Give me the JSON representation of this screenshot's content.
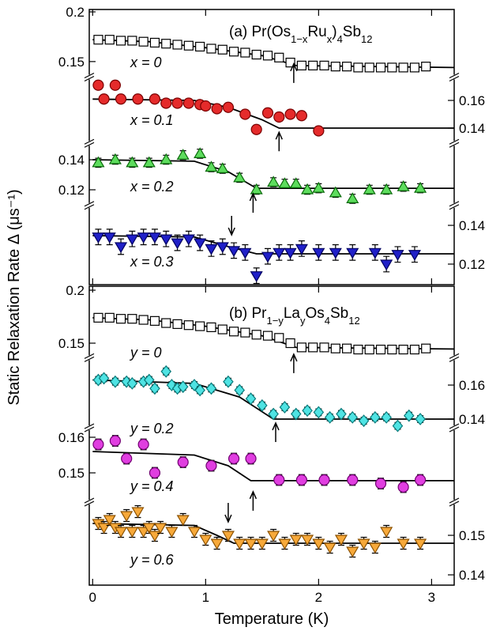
{
  "chart_data": [
    {
      "type": "scatter",
      "title_parts": [
        {
          "text": "(a)  Pr(Os"
        },
        {
          "text": "1−x",
          "sub": true
        },
        {
          "text": "Ru"
        },
        {
          "text": "x",
          "sub": true
        },
        {
          "text": ")"
        },
        {
          "text": "4",
          "sub": true
        },
        {
          "text": "Sb"
        },
        {
          "text": "12",
          "sub": true
        }
      ],
      "y_label": "Static Relaxation Rate Δ (μs⁻¹)",
      "xlim": [
        -0.03,
        3.2
      ],
      "xticks": [
        0,
        1,
        2,
        3
      ],
      "series": [
        {
          "name": "x = 0",
          "marker": "square",
          "filled": false,
          "color": "#ffffff",
          "edgecolor": "#000000",
          "axis": "left",
          "ylim": [
            0.13,
            0.2
          ],
          "yticks": [
            0.15,
            0.2
          ],
          "x": [
            0.05,
            0.15,
            0.25,
            0.35,
            0.45,
            0.55,
            0.65,
            0.75,
            0.85,
            0.95,
            1.05,
            1.15,
            1.25,
            1.35,
            1.45,
            1.55,
            1.65,
            1.75,
            1.85,
            1.95,
            2.05,
            2.15,
            2.25,
            2.35,
            2.45,
            2.55,
            2.65,
            2.75,
            2.85,
            2.95
          ],
          "values": [
            0.172,
            0.172,
            0.171,
            0.171,
            0.17,
            0.169,
            0.168,
            0.167,
            0.166,
            0.165,
            0.163,
            0.162,
            0.16,
            0.159,
            0.157,
            0.156,
            0.154,
            0.149,
            0.146,
            0.146,
            0.146,
            0.145,
            0.145,
            0.144,
            0.144,
            0.144,
            0.144,
            0.144,
            0.144,
            0.145
          ],
          "fit_x": [
            0,
            0.5,
            1.0,
            1.5,
            1.8,
            3.2
          ],
          "fit_y": [
            0.172,
            0.17,
            0.164,
            0.156,
            0.146,
            0.144
          ],
          "arrows": [
            {
              "x": 1.78,
              "y": 0.1476,
              "dir": "up"
            }
          ]
        },
        {
          "name": "x = 0.1",
          "marker": "circle",
          "filled": true,
          "color": "#e52b2b",
          "edgecolor": "#7a0000",
          "axis": "right",
          "ylim": [
            0.13,
            0.18
          ],
          "yticks": [
            0.14,
            0.16
          ],
          "x": [
            0.05,
            0.1,
            0.2,
            0.25,
            0.4,
            0.55,
            0.65,
            0.75,
            0.85,
            0.95,
            1.0,
            1.1,
            1.2,
            1.35,
            1.45,
            1.55,
            1.65,
            1.75,
            1.85,
            2.0
          ],
          "values": [
            0.171,
            0.161,
            0.171,
            0.161,
            0.161,
            0.161,
            0.158,
            0.158,
            0.158,
            0.157,
            0.156,
            0.154,
            0.155,
            0.15,
            0.139,
            0.151,
            0.148,
            0.15,
            0.149,
            0.138
          ],
          "errors": [
            0.003,
            0.003,
            0.003,
            0.003,
            0.003,
            0.003,
            0.003,
            0.003,
            0.003,
            0.003,
            0.003,
            0.003,
            0.003,
            0.003,
            0.003,
            0.003,
            0.003,
            0.003,
            0.003,
            0.003
          ],
          "fit_x": [
            0,
            0.9,
            1.2,
            1.5,
            1.65,
            3.2
          ],
          "fit_y": [
            0.161,
            0.16,
            0.155,
            0.146,
            0.14,
            0.14
          ],
          "arrows": [
            {
              "x": 1.65,
              "y": 0.137,
              "dir": "up"
            }
          ]
        },
        {
          "name": "x = 0.2",
          "marker": "triangle-up",
          "filled": true,
          "color": "#5ddc5d",
          "edgecolor": "#0a6a0a",
          "axis": "left",
          "ylim": [
            0.11,
            0.15
          ],
          "yticks": [
            0.12,
            0.14
          ],
          "x": [
            0.05,
            0.2,
            0.35,
            0.5,
            0.65,
            0.8,
            0.95,
            1.05,
            1.15,
            1.3,
            1.45,
            1.6,
            1.7,
            1.8,
            1.9,
            2.0,
            2.15,
            2.3,
            2.45,
            2.6,
            2.75,
            2.9
          ],
          "values": [
            0.138,
            0.14,
            0.138,
            0.138,
            0.14,
            0.143,
            0.144,
            0.135,
            0.134,
            0.128,
            0.12,
            0.125,
            0.124,
            0.124,
            0.12,
            0.121,
            0.118,
            0.114,
            0.12,
            0.12,
            0.122,
            0.121
          ],
          "errors": [
            0.003,
            0.003,
            0.003,
            0.003,
            0.003,
            0.003,
            0.003,
            0.003,
            0.003,
            0.003,
            0.003,
            0.003,
            0.003,
            0.003,
            0.003,
            0.003,
            0.003,
            0.003,
            0.003,
            0.003,
            0.003,
            0.003
          ],
          "fit_x": [
            0,
            0.9,
            1.2,
            1.45,
            3.2
          ],
          "fit_y": [
            0.14,
            0.139,
            0.132,
            0.121,
            0.121
          ],
          "arrows": [
            {
              "x": 1.42,
              "y": 0.1174,
              "dir": "up"
            }
          ]
        },
        {
          "name": "x = 0.3",
          "marker": "triangle-down",
          "filled": true,
          "color": "#2020c8",
          "edgecolor": "#000060",
          "axis": "right",
          "ylim": [
            0.11,
            0.15
          ],
          "yticks": [
            0.12,
            0.14
          ],
          "x": [
            0.05,
            0.15,
            0.25,
            0.35,
            0.45,
            0.55,
            0.65,
            0.75,
            0.85,
            0.95,
            1.05,
            1.15,
            1.25,
            1.35,
            1.45,
            1.55,
            1.65,
            1.75,
            1.85,
            2.0,
            2.15,
            2.3,
            2.5,
            2.6,
            2.7,
            2.85
          ],
          "values": [
            0.134,
            0.134,
            0.129,
            0.133,
            0.134,
            0.134,
            0.133,
            0.131,
            0.133,
            0.131,
            0.128,
            0.129,
            0.127,
            0.126,
            0.114,
            0.124,
            0.126,
            0.126,
            0.128,
            0.126,
            0.126,
            0.126,
            0.126,
            0.12,
            0.125,
            0.125
          ],
          "errors": [
            0.004,
            0.004,
            0.004,
            0.004,
            0.004,
            0.004,
            0.004,
            0.004,
            0.004,
            0.004,
            0.004,
            0.004,
            0.004,
            0.004,
            0.004,
            0.004,
            0.004,
            0.004,
            0.004,
            0.004,
            0.004,
            0.004,
            0.004,
            0.004,
            0.004,
            0.004
          ],
          "fit_x": [
            0,
            0.9,
            1.2,
            1.45,
            3.2
          ],
          "fit_y": [
            0.1347,
            0.134,
            0.129,
            0.1253,
            0.1253
          ],
          "arrows": [
            {
              "x": 1.23,
              "y": 0.1351,
              "dir": "down"
            }
          ]
        }
      ]
    },
    {
      "type": "scatter",
      "title_parts": [
        {
          "text": "(b)  Pr"
        },
        {
          "text": "1−y",
          "sub": true
        },
        {
          "text": "La"
        },
        {
          "text": "y",
          "sub": true
        },
        {
          "text": "Os"
        },
        {
          "text": "4",
          "sub": true
        },
        {
          "text": "Sb"
        },
        {
          "text": "12",
          "sub": true
        }
      ],
      "x_label": "Temperature (K)",
      "xlim": [
        -0.03,
        3.2
      ],
      "xticks": [
        0,
        1,
        2,
        3
      ],
      "series": [
        {
          "name": "y = 0",
          "marker": "square",
          "filled": false,
          "color": "#ffffff",
          "edgecolor": "#000000",
          "axis": "left",
          "ylim": [
            0.13,
            0.2
          ],
          "yticks": [
            0.15,
            0.2
          ],
          "x": [
            0.05,
            0.15,
            0.25,
            0.35,
            0.45,
            0.55,
            0.65,
            0.75,
            0.85,
            0.95,
            1.05,
            1.15,
            1.25,
            1.35,
            1.45,
            1.55,
            1.65,
            1.75,
            1.85,
            1.95,
            2.05,
            2.15,
            2.25,
            2.35,
            2.45,
            2.55,
            2.65,
            2.75,
            2.85,
            2.95
          ],
          "values": [
            0.174,
            0.174,
            0.173,
            0.173,
            0.172,
            0.171,
            0.169,
            0.168,
            0.167,
            0.166,
            0.165,
            0.163,
            0.161,
            0.16,
            0.158,
            0.157,
            0.155,
            0.15,
            0.146,
            0.146,
            0.146,
            0.145,
            0.145,
            0.144,
            0.144,
            0.144,
            0.144,
            0.144,
            0.144,
            0.145
          ],
          "fit_x": [
            0,
            0.5,
            1.0,
            1.5,
            1.8,
            3.2
          ],
          "fit_y": [
            0.174,
            0.172,
            0.166,
            0.157,
            0.146,
            0.1445
          ],
          "arrows": [
            {
              "x": 1.78,
              "y": 0.1396,
              "dir": "up"
            }
          ]
        },
        {
          "name": "y = 0.2",
          "marker": "diamond",
          "filled": true,
          "color": "#4fe3e3",
          "edgecolor": "#0a7a7a",
          "axis": "right",
          "ylim": [
            0.13,
            0.18
          ],
          "yticks": [
            0.14,
            0.16
          ],
          "x": [
            0.05,
            0.1,
            0.2,
            0.3,
            0.35,
            0.45,
            0.5,
            0.55,
            0.65,
            0.7,
            0.75,
            0.8,
            0.9,
            0.95,
            1.05,
            1.2,
            1.3,
            1.4,
            1.5,
            1.6,
            1.7,
            1.8,
            1.9,
            2.0,
            2.1,
            2.2,
            2.3,
            2.4,
            2.5,
            2.6,
            2.7,
            2.8,
            2.9
          ],
          "values": [
            0.163,
            0.164,
            0.162,
            0.162,
            0.161,
            0.162,
            0.163,
            0.158,
            0.168,
            0.16,
            0.158,
            0.159,
            0.16,
            0.157,
            0.158,
            0.162,
            0.157,
            0.152,
            0.148,
            0.143,
            0.147,
            0.143,
            0.145,
            0.144,
            0.141,
            0.143,
            0.141,
            0.139,
            0.141,
            0.141,
            0.136,
            0.142,
            0.14
          ],
          "errors": [
            0.002,
            0.002,
            0.002,
            0.002,
            0.002,
            0.002,
            0.002,
            0.002,
            0.002,
            0.002,
            0.002,
            0.002,
            0.002,
            0.002,
            0.002,
            0.002,
            0.002,
            0.002,
            0.002,
            0.002,
            0.002,
            0.002,
            0.002,
            0.002,
            0.002,
            0.002,
            0.002,
            0.002,
            0.002,
            0.002,
            0.002,
            0.002,
            0.002
          ],
          "fit_x": [
            0,
            0.9,
            1.3,
            1.6,
            3.2
          ],
          "fit_y": [
            0.163,
            0.161,
            0.153,
            0.14,
            0.14
          ],
          "arrows": [
            {
              "x": 1.62,
              "y": 0.1377,
              "dir": "up"
            }
          ]
        },
        {
          "name": "y = 0.4",
          "marker": "circle",
          "filled": true,
          "color": "#e03ee0",
          "edgecolor": "#700070",
          "axis": "left",
          "ylim": [
            0.14,
            0.165
          ],
          "yticks": [
            0.15,
            0.16
          ],
          "x": [
            0.05,
            0.2,
            0.3,
            0.45,
            0.55,
            0.8,
            1.05,
            1.25,
            1.4,
            1.65,
            1.85,
            2.05,
            2.3,
            2.55,
            2.75,
            2.9
          ],
          "values": [
            0.158,
            0.159,
            0.154,
            0.158,
            0.15,
            0.153,
            0.152,
            0.154,
            0.154,
            0.148,
            0.148,
            0.148,
            0.148,
            0.147,
            0.146,
            0.148
          ],
          "errors": [
            0.0015,
            0.0015,
            0.0015,
            0.0015,
            0.0015,
            0.0015,
            0.0015,
            0.0015,
            0.0015,
            0.0015,
            0.0015,
            0.0015,
            0.0015,
            0.0015,
            0.0015,
            0.0015
          ],
          "fit_x": [
            0,
            0.9,
            1.2,
            1.4,
            3.2
          ],
          "fit_y": [
            0.156,
            0.155,
            0.152,
            0.1478,
            0.1478
          ],
          "arrows": [
            {
              "x": 1.42,
              "y": 0.1447,
              "dir": "up"
            }
          ]
        },
        {
          "name": "y = 0.6",
          "marker": "triangle-down",
          "filled": true,
          "color": "#f7a93a",
          "edgecolor": "#8a5000",
          "axis": "right",
          "ylim": [
            0.1375,
            0.16
          ],
          "yticks": [
            0.14,
            0.15
          ],
          "x": [
            0.05,
            0.1,
            0.15,
            0.2,
            0.25,
            0.3,
            0.35,
            0.4,
            0.45,
            0.5,
            0.55,
            0.6,
            0.7,
            0.8,
            0.9,
            1.0,
            1.1,
            1.2,
            1.3,
            1.4,
            1.5,
            1.6,
            1.7,
            1.8,
            1.9,
            2.0,
            2.1,
            2.2,
            2.3,
            2.4,
            2.5,
            2.6,
            2.75,
            2.9
          ],
          "values": [
            0.153,
            0.152,
            0.154,
            0.152,
            0.151,
            0.155,
            0.151,
            0.156,
            0.151,
            0.152,
            0.15,
            0.152,
            0.151,
            0.154,
            0.151,
            0.149,
            0.148,
            0.15,
            0.148,
            0.148,
            0.148,
            0.15,
            0.148,
            0.149,
            0.149,
            0.148,
            0.147,
            0.149,
            0.146,
            0.148,
            0.147,
            0.151,
            0.148,
            0.148
          ],
          "errors": [
            0.0015,
            0.0015,
            0.0015,
            0.0015,
            0.0015,
            0.0015,
            0.0015,
            0.0015,
            0.0015,
            0.0015,
            0.0015,
            0.0015,
            0.0015,
            0.0015,
            0.0015,
            0.0015,
            0.0015,
            0.0015,
            0.0015,
            0.0015,
            0.0015,
            0.0015,
            0.0015,
            0.0015,
            0.0015,
            0.0015,
            0.0015,
            0.0015,
            0.0015,
            0.0015,
            0.0015,
            0.0015,
            0.0015,
            0.0015
          ],
          "fit_x": [
            0,
            0.9,
            1.1,
            1.25,
            3.2
          ],
          "fit_y": [
            0.153,
            0.1525,
            0.15,
            0.148,
            0.148
          ],
          "arrows": [
            {
              "x": 1.2,
              "y": 0.1534,
              "dir": "down"
            }
          ]
        }
      ]
    }
  ]
}
